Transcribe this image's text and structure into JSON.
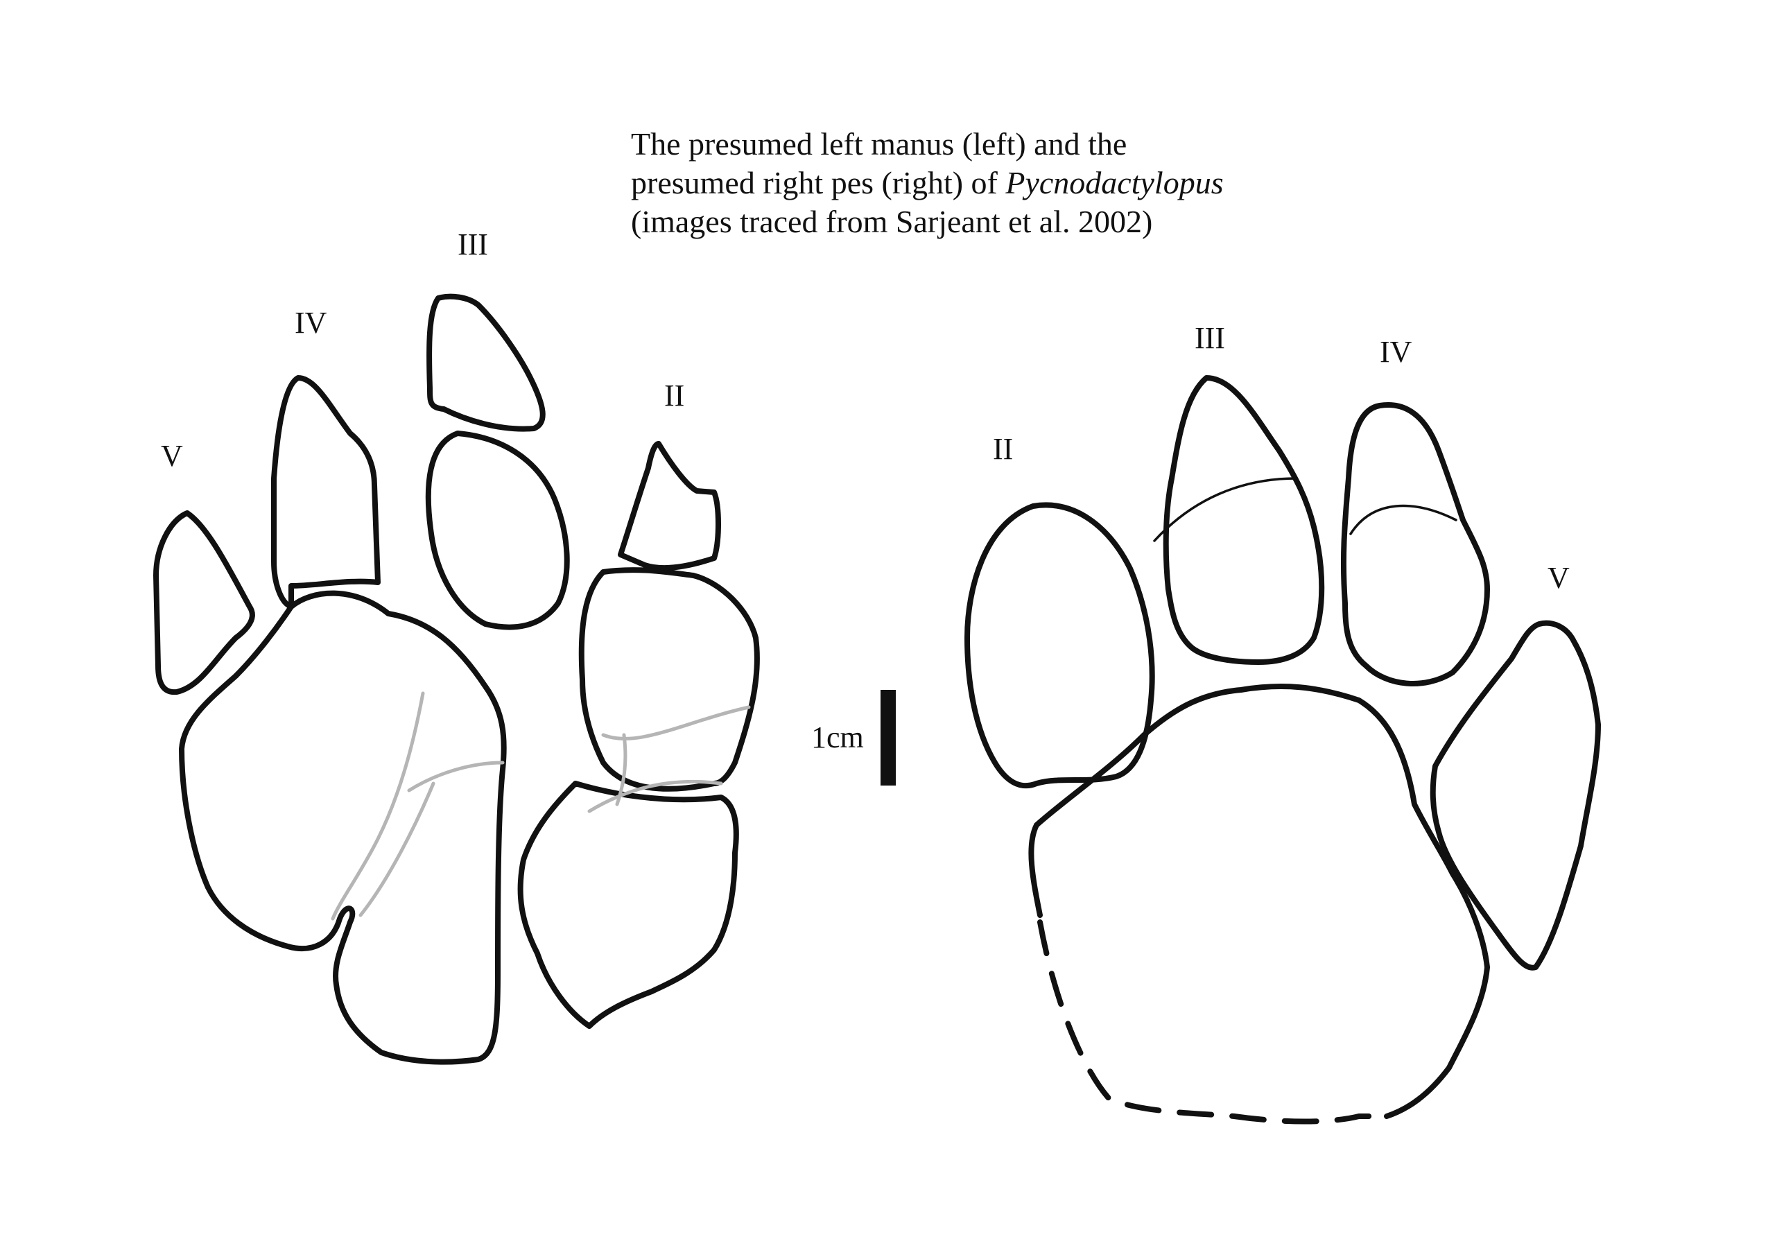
{
  "caption": {
    "line1": "The presumed left manus (left) and the",
    "line2_pre": "presumed right pes (right) of ",
    "line2_taxon": "Pycnodactylopus",
    "line3": "(images traced from Sarjeant et al. 2002)"
  },
  "manus": {
    "digits": {
      "v": "V",
      "iv": "IV",
      "iii": "III",
      "ii": "II"
    }
  },
  "pes": {
    "digits": {
      "ii": "II",
      "iii": "III",
      "iv": "IV",
      "v": "V"
    }
  },
  "scale": {
    "label": "1cm"
  }
}
